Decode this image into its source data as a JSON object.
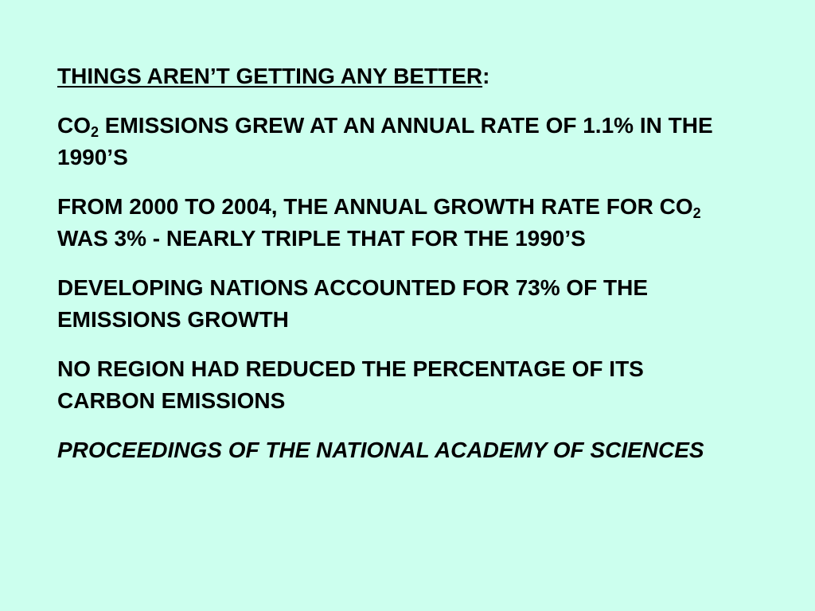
{
  "heading": {
    "text": "THINGS AREN’T GETTING ANY BETTER",
    "suffix": ":"
  },
  "paragraphs": [
    {
      "parts": [
        {
          "text": "CO"
        },
        {
          "subscript": "2"
        },
        {
          "text": " EMISSIONS GREW AT AN ANNUAL RATE OF 1.1% IN THE 1990’S"
        }
      ]
    },
    {
      "parts": [
        {
          "text": "FROM 2000 TO 2004, THE ANNUAL GROWTH RATE FOR CO"
        },
        {
          "subscript": "2"
        },
        {
          "text": " WAS 3% - NEARLY TRIPLE THAT FOR THE 1990’S"
        }
      ]
    },
    {
      "parts": [
        {
          "text": "DEVELOPING NATIONS ACCOUNTED FOR 73% OF THE EMISSIONS GROWTH"
        }
      ]
    },
    {
      "parts": [
        {
          "text": "NO REGION HAD REDUCED THE PERCENTAGE OF ITS CARBON EMISSIONS"
        }
      ]
    }
  ],
  "source": "PROCEEDINGS OF THE NATIONAL ACADEMY OF SCIENCES"
}
